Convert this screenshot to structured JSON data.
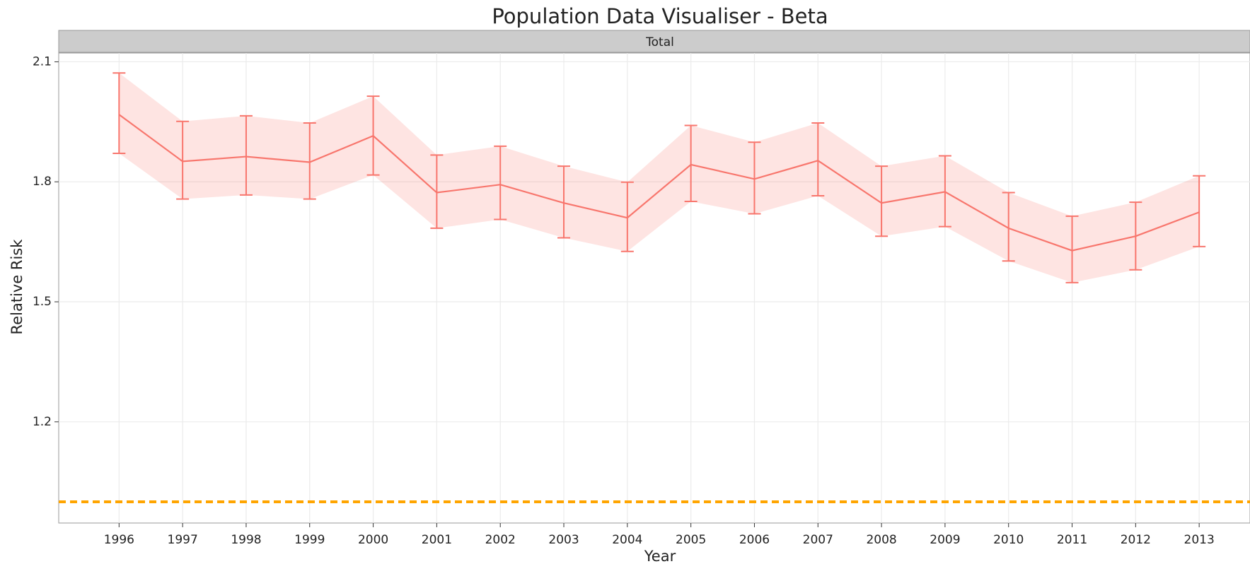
{
  "chart_data": {
    "type": "line",
    "title": "Population Data Visualiser - Beta",
    "facet": "Total",
    "x_label": "Year",
    "y_label": "Relative Risk",
    "x": [
      1996,
      1997,
      1998,
      1999,
      2000,
      2001,
      2002,
      2003,
      2004,
      2005,
      2006,
      2007,
      2008,
      2009,
      2010,
      2011,
      2012,
      2013
    ],
    "series": [
      {
        "color": "#f8766d",
        "values": [
          1.968,
          1.851,
          1.863,
          1.849,
          1.915,
          1.773,
          1.793,
          1.747,
          1.71,
          1.843,
          1.807,
          1.853,
          1.747,
          1.775,
          1.684,
          1.628,
          1.664,
          1.724
        ],
        "upper": [
          2.072,
          1.951,
          1.965,
          1.947,
          2.014,
          1.867,
          1.889,
          1.839,
          1.799,
          1.941,
          1.899,
          1.947,
          1.839,
          1.865,
          1.773,
          1.714,
          1.749,
          1.815
        ],
        "lower": [
          1.871,
          1.757,
          1.767,
          1.757,
          1.817,
          1.684,
          1.706,
          1.66,
          1.626,
          1.751,
          1.72,
          1.765,
          1.664,
          1.688,
          1.602,
          1.548,
          1.58,
          1.638
        ]
      }
    ],
    "hline": {
      "value": 1,
      "color": "#ffa500"
    },
    "xlim": [
      1995.05,
      2013.8
    ],
    "ylim": [
      0.947,
      2.122
    ],
    "xticks": [
      1996,
      1997,
      1998,
      1999,
      2000,
      2001,
      2002,
      2003,
      2004,
      2005,
      2006,
      2007,
      2008,
      2009,
      2010,
      2011,
      2012,
      2013
    ],
    "yticks": [
      {
        "value": 1.2,
        "label": "1.2"
      },
      {
        "value": 1.5,
        "label": "1.5"
      },
      {
        "value": 1.8,
        "label": "1.8"
      },
      {
        "value": 2.1,
        "label": "2.1"
      }
    ],
    "grid": true
  }
}
